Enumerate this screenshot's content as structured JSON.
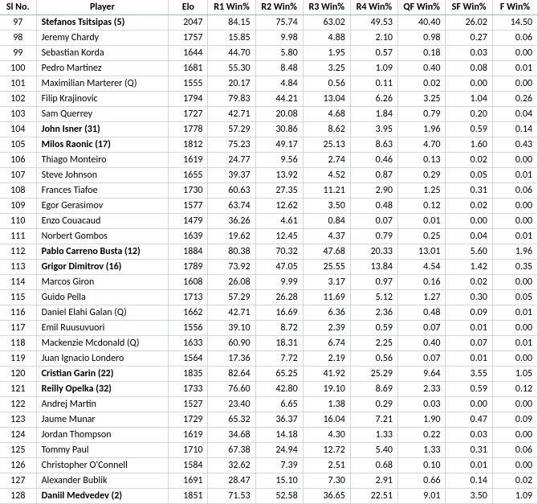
{
  "table": {
    "columns": [
      "Sl No.",
      "Player",
      "Elo",
      "R1 Win%",
      "R2 Win%",
      "R3 Win%",
      "R4 Win%",
      "QF Win%",
      "SF Win%",
      "F Win%"
    ],
    "header_fontsize": 12,
    "body_fontsize": 12,
    "gridline_color": "#d0d7e5",
    "header_border_color": "#9eb6ce",
    "background_color": "#ffffff",
    "text_color": "#000000",
    "col_align": [
      "center",
      "left",
      "right",
      "right",
      "right",
      "right",
      "right",
      "right",
      "right",
      "right"
    ],
    "bold_rows": [
      0,
      7,
      8,
      15,
      16,
      23,
      24,
      31
    ],
    "rows": [
      [
        "97",
        "Stefanos Tsitsipas (5)",
        "2047",
        "84.15",
        "75.74",
        "63.02",
        "49.53",
        "40.40",
        "26.02",
        "14.50"
      ],
      [
        "98",
        "Jeremy Chardy",
        "1757",
        "15.85",
        "9.98",
        "4.88",
        "2.10",
        "0.98",
        "0.27",
        "0.06"
      ],
      [
        "99",
        "Sebastian Korda",
        "1644",
        "44.70",
        "5.80",
        "1.95",
        "0.57",
        "0.18",
        "0.03",
        "0.00"
      ],
      [
        "100",
        "Pedro Martinez",
        "1681",
        "55.30",
        "8.48",
        "3.25",
        "1.09",
        "0.40",
        "0.08",
        "0.01"
      ],
      [
        "101",
        "Maximilian Marterer (Q)",
        "1555",
        "20.17",
        "4.84",
        "0.56",
        "0.11",
        "0.02",
        "0.00",
        "0.00"
      ],
      [
        "102",
        "Filip Krajinovic",
        "1794",
        "79.83",
        "44.21",
        "13.04",
        "6.26",
        "3.25",
        "1.04",
        "0.26"
      ],
      [
        "103",
        "Sam Querrey",
        "1727",
        "42.71",
        "20.08",
        "4.68",
        "1.84",
        "0.79",
        "0.20",
        "0.04"
      ],
      [
        "104",
        "John Isner (31)",
        "1778",
        "57.29",
        "30.86",
        "8.62",
        "3.95",
        "1.96",
        "0.59",
        "0.14"
      ],
      [
        "105",
        "Milos Raonic (17)",
        "1812",
        "75.23",
        "49.17",
        "25.13",
        "8.63",
        "4.70",
        "1.60",
        "0.43"
      ],
      [
        "106",
        "Thiago Monteiro",
        "1619",
        "24.77",
        "9.56",
        "2.74",
        "0.46",
        "0.13",
        "0.02",
        "0.00"
      ],
      [
        "107",
        "Steve Johnson",
        "1655",
        "39.37",
        "13.92",
        "4.52",
        "0.87",
        "0.29",
        "0.05",
        "0.01"
      ],
      [
        "108",
        "Frances Tiafoe",
        "1730",
        "60.63",
        "27.35",
        "11.21",
        "2.90",
        "1.25",
        "0.31",
        "0.06"
      ],
      [
        "109",
        "Egor Gerasimov",
        "1577",
        "63.74",
        "12.62",
        "3.50",
        "0.48",
        "0.12",
        "0.02",
        "0.00"
      ],
      [
        "110",
        "Enzo Couacaud",
        "1479",
        "36.26",
        "4.61",
        "0.84",
        "0.07",
        "0.01",
        "0.00",
        "0.00"
      ],
      [
        "111",
        "Norbert Gombos",
        "1639",
        "19.62",
        "12.45",
        "4.37",
        "0.79",
        "0.25",
        "0.04",
        "0.01"
      ],
      [
        "112",
        "Pablo Carreno Busta (12)",
        "1884",
        "80.38",
        "70.32",
        "47.68",
        "20.33",
        "13.01",
        "5.60",
        "1.96"
      ],
      [
        "113",
        "Grigor Dimitrov (16)",
        "1789",
        "73.92",
        "47.05",
        "25.55",
        "13.84",
        "4.54",
        "1.42",
        "0.35"
      ],
      [
        "114",
        "Marcos Giron",
        "1608",
        "26.08",
        "9.99",
        "3.17",
        "0.97",
        "0.16",
        "0.02",
        "0.00"
      ],
      [
        "115",
        "Guido Pella",
        "1713",
        "57.29",
        "26.28",
        "11.69",
        "5.12",
        "1.27",
        "0.30",
        "0.05"
      ],
      [
        "116",
        "Daniel Elahi Galan (Q)",
        "1662",
        "42.71",
        "16.69",
        "6.36",
        "2.36",
        "0.48",
        "0.09",
        "0.01"
      ],
      [
        "117",
        "Emil Ruusuvuori",
        "1556",
        "39.10",
        "8.72",
        "2.39",
        "0.59",
        "0.07",
        "0.01",
        "0.00"
      ],
      [
        "118",
        "Mackenzie Mcdonald (Q)",
        "1633",
        "60.90",
        "18.31",
        "6.74",
        "2.25",
        "0.40",
        "0.07",
        "0.01"
      ],
      [
        "119",
        "Juan Ignacio Londero",
        "1564",
        "17.36",
        "7.72",
        "2.19",
        "0.56",
        "0.07",
        "0.01",
        "0.00"
      ],
      [
        "120",
        "Cristian Garin (22)",
        "1835",
        "82.64",
        "65.25",
        "41.92",
        "25.29",
        "9.64",
        "3.55",
        "1.05"
      ],
      [
        "121",
        "Reilly Opelka (32)",
        "1733",
        "76.60",
        "42.80",
        "19.10",
        "8.69",
        "2.33",
        "0.59",
        "0.12"
      ],
      [
        "122",
        "Andrej Martin",
        "1527",
        "23.40",
        "6.65",
        "1.38",
        "0.29",
        "0.03",
        "0.00",
        "0.00"
      ],
      [
        "123",
        "Jaume Munar",
        "1729",
        "65.32",
        "36.37",
        "16.04",
        "7.21",
        "1.90",
        "0.47",
        "0.09"
      ],
      [
        "124",
        "Jordan Thompson",
        "1619",
        "34.68",
        "14.18",
        "4.30",
        "1.33",
        "0.22",
        "0.03",
        "0.00"
      ],
      [
        "125",
        "Tommy Paul",
        "1710",
        "67.38",
        "24.94",
        "12.72",
        "5.40",
        "1.33",
        "0.31",
        "0.06"
      ],
      [
        "126",
        "Christopher O'Connell",
        "1584",
        "32.62",
        "7.39",
        "2.51",
        "0.68",
        "0.10",
        "0.01",
        "0.00"
      ],
      [
        "127",
        "Alexander Bublik",
        "1691",
        "28.47",
        "15.10",
        "7.30",
        "2.91",
        "0.66",
        "0.14",
        "0.02"
      ],
      [
        "128",
        "Daniil Medvedev (2)",
        "1851",
        "71.53",
        "52.58",
        "36.65",
        "22.51",
        "9.01",
        "3.50",
        "1.09"
      ]
    ]
  }
}
